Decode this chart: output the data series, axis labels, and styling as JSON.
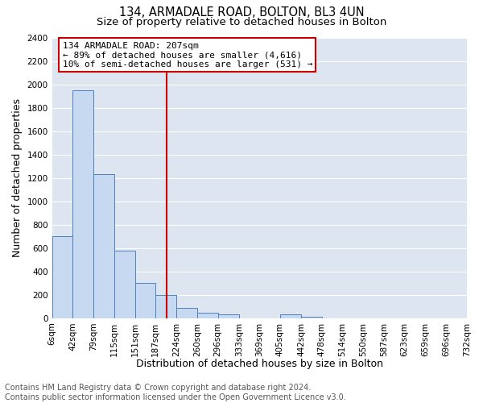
{
  "title": "134, ARMADALE ROAD, BOLTON, BL3 4UN",
  "subtitle": "Size of property relative to detached houses in Bolton",
  "xlabel": "Distribution of detached houses by size in Bolton",
  "ylabel": "Number of detached properties",
  "bar_edges": [
    6,
    42,
    79,
    115,
    151,
    187,
    224,
    260,
    296,
    333,
    369,
    405,
    442,
    478,
    514,
    550,
    587,
    623,
    659,
    696,
    732
  ],
  "bar_heights": [
    700,
    1950,
    1230,
    575,
    300,
    200,
    85,
    45,
    30,
    0,
    0,
    30,
    10,
    0,
    0,
    0,
    0,
    0,
    0,
    0
  ],
  "bar_color": "#c6d9f0",
  "bar_edge_color": "#4f81bd",
  "property_line_x": 207,
  "property_line_color": "#cc0000",
  "ylim": [
    0,
    2400
  ],
  "yticks": [
    0,
    200,
    400,
    600,
    800,
    1000,
    1200,
    1400,
    1600,
    1800,
    2000,
    2200,
    2400
  ],
  "xtick_labels": [
    "6sqm",
    "42sqm",
    "79sqm",
    "115sqm",
    "151sqm",
    "187sqm",
    "224sqm",
    "260sqm",
    "296sqm",
    "333sqm",
    "369sqm",
    "405sqm",
    "442sqm",
    "478sqm",
    "514sqm",
    "550sqm",
    "587sqm",
    "623sqm",
    "659sqm",
    "696sqm",
    "732sqm"
  ],
  "annotation_title": "134 ARMADALE ROAD: 207sqm",
  "annotation_line1": "← 89% of detached houses are smaller (4,616)",
  "annotation_line2": "10% of semi-detached houses are larger (531) →",
  "annotation_box_color": "#ffffff",
  "annotation_box_edge": "#cc0000",
  "footer_line1": "Contains HM Land Registry data © Crown copyright and database right 2024.",
  "footer_line2": "Contains public sector information licensed under the Open Government Licence v3.0.",
  "grid_color": "#ffffff",
  "bg_color": "#dde5f0",
  "fig_bg_color": "#ffffff",
  "title_fontsize": 10.5,
  "subtitle_fontsize": 9.5,
  "axis_label_fontsize": 9,
  "tick_fontsize": 7.5,
  "annotation_fontsize": 8,
  "footer_fontsize": 7
}
